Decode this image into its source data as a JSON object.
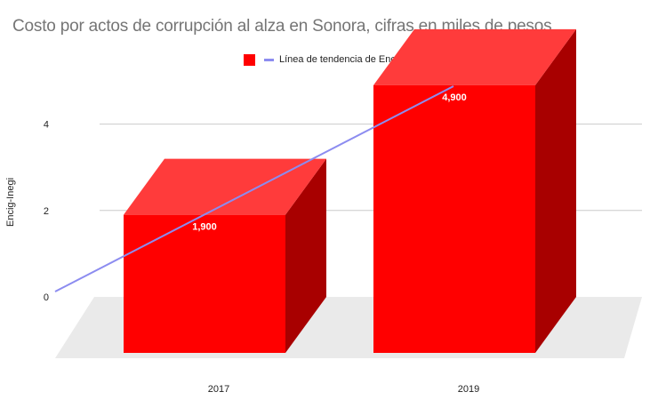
{
  "chart_data": {
    "type": "bar",
    "title": "Costo por actos de corrupción al alza en Sonora, cifras en miles de pesos",
    "xlabel": "",
    "ylabel": "Encig-Inegi",
    "categories": [
      "2017",
      "2019"
    ],
    "series": [
      {
        "name": "",
        "values": [
          1900,
          4900
        ],
        "data_labels": [
          "1,900",
          "4,900"
        ],
        "color": "#ff0000"
      }
    ],
    "trendline": {
      "name": "Línea de tendencia de Encig 2017",
      "color": "#8c8cf0"
    },
    "y_ticks": [
      "0",
      "2",
      "4"
    ],
    "ylim": [
      0,
      4.9
    ],
    "grid": true,
    "legend_position": "top",
    "style": "3d-bar"
  }
}
